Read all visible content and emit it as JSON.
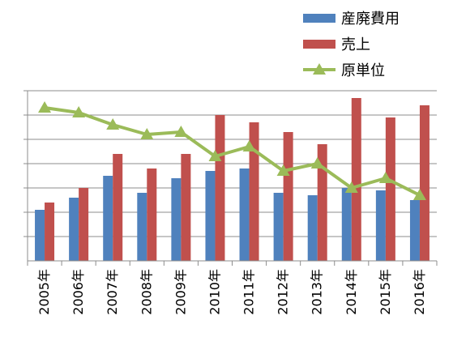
{
  "chart_data": {
    "type": "bar",
    "categories": [
      "2005年",
      "2006年",
      "2007年",
      "2008年",
      "2009年",
      "2010年",
      "2011年",
      "2012年",
      "2013年",
      "2014年",
      "2015年",
      "2016年"
    ],
    "ylim": [
      0,
      7
    ],
    "grid": true,
    "legend_position": "top-right",
    "series": [
      {
        "name": "産廃費用",
        "type": "bar",
        "color": "#4f81bd",
        "values": [
          2.1,
          2.6,
          3.5,
          2.8,
          3.4,
          3.7,
          3.8,
          2.8,
          2.7,
          3.0,
          2.9,
          2.5
        ]
      },
      {
        "name": "売上",
        "type": "bar",
        "color": "#c0504d",
        "values": [
          2.4,
          3.0,
          4.4,
          3.8,
          4.4,
          6.0,
          5.7,
          5.3,
          4.8,
          6.7,
          5.9,
          6.4
        ]
      },
      {
        "name": "原単位",
        "type": "line",
        "color": "#9bbb59",
        "marker": "triangle",
        "values": [
          6.3,
          6.1,
          5.6,
          5.2,
          5.3,
          4.3,
          4.7,
          3.7,
          4.0,
          3.0,
          3.4,
          2.7
        ]
      }
    ]
  }
}
